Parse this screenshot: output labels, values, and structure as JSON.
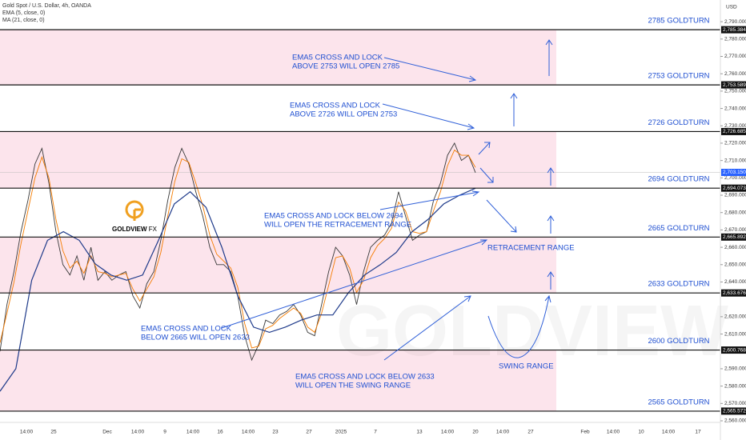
{
  "chart_data": {
    "type": "line",
    "title": "Gold Spot / U.S. Dollar, 4h, OANDA",
    "currency": "USD",
    "watermark": "GOLDVIEW F",
    "logo": [
      "GOLDVIEW",
      "FX"
    ],
    "ylim": [
      2560,
      2802.5
    ],
    "yticks": [
      {
        "value": 2560,
        "label": "2,560.000"
      },
      {
        "value": 2570,
        "label": "2,570.000"
      },
      {
        "value": 2580,
        "label": "2,580.000"
      },
      {
        "value": 2590,
        "label": "2,590.000"
      },
      {
        "value": 2610,
        "label": "2,610.000"
      },
      {
        "value": 2620,
        "label": "2,620.000"
      },
      {
        "value": 2640,
        "label": "2,640.000"
      },
      {
        "value": 2650,
        "label": "2,650.000"
      },
      {
        "value": 2660,
        "label": "2,660.000"
      },
      {
        "value": 2670,
        "label": "2,670.000"
      },
      {
        "value": 2680,
        "label": "2,680.000"
      },
      {
        "value": 2690,
        "label": "2,690.000"
      },
      {
        "value": 2700,
        "label": "2,700.000"
      },
      {
        "value": 2710,
        "label": "2,710.000"
      },
      {
        "value": 2720,
        "label": "2,720.000"
      },
      {
        "value": 2730,
        "label": "2,730.000"
      },
      {
        "value": 2740,
        "label": "2,740.000"
      },
      {
        "value": 2750,
        "label": "2,750.000"
      },
      {
        "value": 2760,
        "label": "2,760.000"
      },
      {
        "value": 2770,
        "label": "2,770.000"
      },
      {
        "value": 2780,
        "label": "2,780.000"
      },
      {
        "value": 2790,
        "label": "2,790.000"
      }
    ],
    "x_labels": [
      "14:00",
      "25",
      "Dec",
      "14:00",
      "9",
      "14:00",
      "16",
      "14:00",
      "23",
      "27",
      "2025",
      "7",
      "13",
      "14:00",
      "20",
      "14:00",
      "27",
      "Feb",
      "14:00",
      "10",
      "14:00",
      "17"
    ],
    "levels": [
      {
        "value": 2785.384,
        "label": "2,785.384",
        "name": "2785 GOLDTURN"
      },
      {
        "value": 2753.589,
        "label": "2,753.589",
        "name": "2753 GOLDTURN"
      },
      {
        "value": 2726.685,
        "label": "2,726.685",
        "name": "2726 GOLDTURN"
      },
      {
        "value": 2694.073,
        "label": "2,694.073",
        "name": "2694 GOLDTURN"
      },
      {
        "value": 2665.892,
        "label": "2,665.892",
        "name": "2665 GOLDTURN"
      },
      {
        "value": 2633.676,
        "label": "2,633.676",
        "name": "2633 GOLDTURN"
      },
      {
        "value": 2600.768,
        "label": "2,600.768",
        "name": "2600 GOLDTURN"
      },
      {
        "value": 2565.572,
        "label": "2,565.572",
        "name": "2565 GOLDTURN"
      }
    ],
    "zone_color": "#fce4ec",
    "current_price": {
      "value": 2703.15,
      "label": "2,703.150",
      "color": "#2962ff"
    },
    "series": [
      {
        "name": "Gold Spot / U.S. Dollar, 4h, OANDA",
        "color": "#3a3a3a",
        "values": [
          2600,
          2627,
          2646,
          2669,
          2687,
          2708,
          2717,
          2697,
          2669,
          2650,
          2644,
          2655,
          2641,
          2660,
          2641,
          2646,
          2641,
          2644,
          2646,
          2632,
          2625,
          2639,
          2646,
          2664,
          2687,
          2706,
          2717,
          2708,
          2692,
          2678,
          2660,
          2650,
          2650,
          2646,
          2632,
          2609,
          2595,
          2604,
          2618,
          2616,
          2621,
          2623,
          2627,
          2621,
          2611,
          2609,
          2627,
          2646,
          2660,
          2655,
          2644,
          2627,
          2646,
          2660,
          2664,
          2667,
          2674,
          2692,
          2678,
          2664,
          2667,
          2669,
          2687,
          2697,
          2713,
          2720,
          2710,
          2713,
          2703
        ]
      },
      {
        "name": "EMA (5, close, 0)",
        "color": "#f57c00",
        "values": [
          2605,
          2622,
          2640,
          2662,
          2681,
          2700,
          2712,
          2700,
          2676,
          2658,
          2648,
          2652,
          2645,
          2655,
          2646,
          2645,
          2643,
          2644,
          2645,
          2636,
          2629,
          2636,
          2643,
          2657,
          2678,
          2698,
          2711,
          2709,
          2697,
          2684,
          2667,
          2656,
          2652,
          2648,
          2637,
          2616,
          2602,
          2603,
          2613,
          2615,
          2619,
          2622,
          2625,
          2622,
          2614,
          2611,
          2622,
          2638,
          2654,
          2655,
          2648,
          2634,
          2641,
          2654,
          2661,
          2665,
          2671,
          2686,
          2681,
          2669,
          2668,
          2669,
          2681,
          2692,
          2707,
          2716,
          2713,
          2713,
          2706
        ]
      },
      {
        "name": "MA (21, close, 0)",
        "color": "#1e3a8a",
        "values": [
          2577,
          2590,
          2641,
          2664,
          2669,
          2664,
          2650.5,
          2644,
          2641,
          2644,
          2664,
          2685,
          2692,
          2683,
          2660,
          2632,
          2614,
          2611,
          2614,
          2618,
          2621,
          2621,
          2634,
          2644,
          2650,
          2657,
          2669,
          2676,
          2685,
          2690,
          2694
        ]
      }
    ],
    "annotations": [
      {
        "lines": [
          "EMA5 CROSS AND LOCK",
          "ABOVE 2753 WILL OPEN 2785"
        ]
      },
      {
        "lines": [
          "EMA5 CROSS AND LOCK",
          "ABOVE 2726 WILL OPEN 2753"
        ]
      },
      {
        "lines": [
          "EMA5 CROSS AND LOCK BELOW 2694",
          "WILL OPEN THE RETRACEMENT RANGE"
        ]
      },
      {
        "lines": [
          "RETRACEMENT RANGE"
        ]
      },
      {
        "lines": [
          "EMA5 CROSS AND LOCK",
          "BELOW 2665 WILL OPEN 2633"
        ]
      },
      {
        "lines": [
          "EMA5 CROSS AND LOCK BELOW 2633",
          "WILL OPEN THE SWING RANGE"
        ]
      },
      {
        "lines": [
          "SWING RANGE"
        ]
      }
    ]
  }
}
